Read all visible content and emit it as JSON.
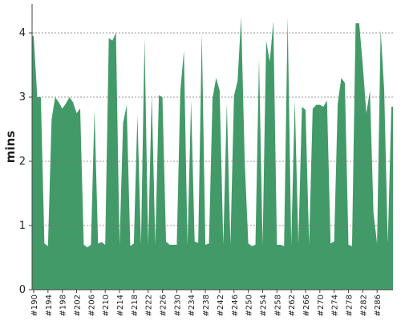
{
  "chart_data": {
    "type": "area",
    "y_label": "mins",
    "color": "#439a69",
    "grid": true,
    "categories": [
      "#190",
      null,
      null,
      null,
      "#194",
      null,
      null,
      null,
      "#198",
      null,
      null,
      null,
      "#202",
      null,
      null,
      null,
      "#206",
      null,
      null,
      null,
      "#210",
      null,
      null,
      null,
      "#214",
      null,
      null,
      null,
      "#218",
      null,
      null,
      null,
      "#222",
      null,
      null,
      null,
      "#226",
      null,
      null,
      null,
      "#230",
      null,
      null,
      null,
      "#234",
      null,
      null,
      null,
      "#238",
      null,
      null,
      null,
      "#242",
      null,
      null,
      null,
      "#246",
      null,
      null,
      null,
      "#250",
      null,
      null,
      null,
      "#254",
      null,
      null,
      null,
      "#258",
      null,
      null,
      null,
      "#262",
      null,
      null,
      null,
      "#266",
      null,
      null,
      null,
      "#270",
      null,
      null,
      null,
      "#274",
      null,
      null,
      null,
      "#278",
      null,
      null,
      null,
      "#282",
      null,
      null,
      null,
      "#286",
      null,
      null,
      null,
      null
    ],
    "values": [
      3.95,
      3.0,
      3.0,
      0.72,
      0.68,
      2.65,
      3.0,
      2.92,
      2.82,
      2.9,
      3.0,
      2.92,
      2.75,
      2.82,
      0.7,
      0.66,
      0.7,
      2.8,
      0.72,
      0.74,
      0.7,
      3.92,
      3.88,
      4.0,
      0.7,
      2.6,
      2.87,
      0.68,
      0.72,
      2.72,
      0.7,
      3.92,
      0.7,
      3.05,
      0.7,
      3.03,
      3.0,
      0.75,
      0.7,
      0.7,
      0.7,
      3.1,
      3.72,
      0.7,
      2.95,
      0.75,
      0.73,
      4.0,
      0.7,
      0.72,
      2.98,
      3.3,
      3.1,
      0.7,
      2.9,
      0.7,
      3.02,
      3.25,
      4.25,
      2.0,
      0.72,
      0.68,
      0.7,
      3.6,
      0.7,
      3.88,
      3.55,
      4.18,
      0.7,
      0.7,
      0.68,
      4.25,
      0.7,
      2.95,
      0.72,
      2.85,
      2.8,
      0.7,
      2.82,
      2.88,
      2.88,
      2.85,
      2.95,
      0.72,
      0.75,
      2.9,
      3.3,
      3.22,
      0.7,
      0.68,
      4.15,
      4.15,
      3.5,
      2.75,
      3.1,
      1.2,
      0.72,
      4.05,
      3.1,
      0.72,
      2.85
    ],
    "ylim": [
      0,
      4.45
    ],
    "yticks": [
      0,
      1,
      2,
      3,
      4
    ]
  }
}
